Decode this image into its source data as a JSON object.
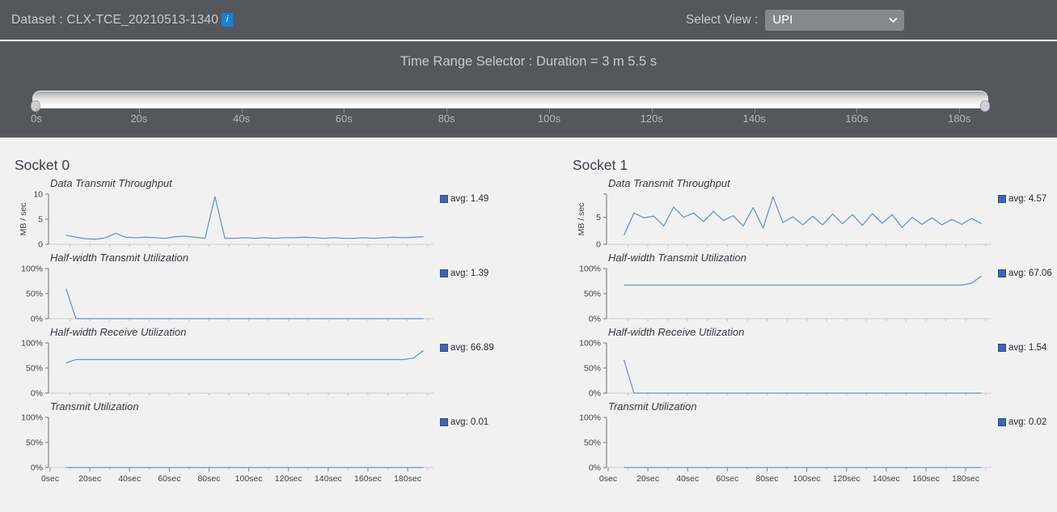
{
  "header": {
    "dataset_label": "Dataset : CLX-TCE_20210513-1340",
    "select_view_label": "Select View :",
    "view_options": [
      "UPI"
    ],
    "view_selected": "UPI"
  },
  "time_range": {
    "title": "Time Range Selector : Duration = 3 m 5.5 s",
    "tick_labels": [
      "0s",
      "20s",
      "40s",
      "60s",
      "80s",
      "100s",
      "120s",
      "140s",
      "160s",
      "180s"
    ]
  },
  "x_axis": {
    "tick_labels": [
      "0sec",
      "20sec",
      "40sec",
      "60sec",
      "80sec",
      "100sec",
      "120sec",
      "140sec",
      "160sec",
      "180sec"
    ],
    "tick_step_sec": 20
  },
  "colors": {
    "line": "#6d94c4",
    "legend_square": "#3b67ae",
    "info_icon_bg": "#1b7ed4",
    "header_bg": "#54585d",
    "content_bg": "#f1f1f2"
  },
  "sockets": [
    {
      "title": "Socket 0"
    },
    {
      "title": "Socket 1"
    }
  ],
  "chart_data": [
    {
      "type": "line",
      "socket": "Socket 0",
      "title": "Data Transmit Throughput",
      "ylabel": "MB / sec",
      "ylim": [
        0,
        10
      ],
      "xlim": [
        0,
        193
      ],
      "yticks": [
        {
          "v": 0,
          "label": "0"
        },
        {
          "v": 5,
          "label": "5"
        },
        {
          "v": 10,
          "label": "10"
        }
      ],
      "x_start": 8,
      "x_step": 5,
      "values": [
        1.8,
        1.4,
        1.1,
        1.0,
        1.3,
        2.2,
        1.4,
        1.3,
        1.4,
        1.3,
        1.2,
        1.5,
        1.6,
        1.4,
        1.2,
        9.5,
        1.2,
        1.2,
        1.3,
        1.2,
        1.3,
        1.2,
        1.3,
        1.3,
        1.4,
        1.3,
        1.2,
        1.3,
        1.2,
        1.2,
        1.3,
        1.2,
        1.3,
        1.4,
        1.3,
        1.4,
        1.5
      ],
      "legend": "avg: 1.49",
      "avg": 1.49
    },
    {
      "type": "line",
      "socket": "Socket 0",
      "title": "Half-width Transmit Utilization",
      "ylabel": "",
      "ylim": [
        0,
        100
      ],
      "xlim": [
        0,
        193
      ],
      "yticks": [
        {
          "v": 0,
          "label": "0%"
        },
        {
          "v": 50,
          "label": "50%"
        },
        {
          "v": 100,
          "label": "100%"
        }
      ],
      "x_start": 8,
      "x_step": 5,
      "values": [
        60,
        0,
        0,
        0,
        0,
        0,
        0,
        0,
        0,
        0,
        0,
        0,
        0,
        0,
        0,
        0,
        0,
        0,
        0,
        0,
        0,
        0,
        0,
        0,
        0,
        0,
        0,
        0,
        0,
        0,
        0,
        0,
        0,
        0,
        0,
        0,
        0
      ],
      "legend": "avg: 1.39",
      "avg": 1.39
    },
    {
      "type": "line",
      "socket": "Socket 0",
      "title": "Half-width Receive Utilization",
      "ylabel": "",
      "ylim": [
        0,
        100
      ],
      "xlim": [
        0,
        193
      ],
      "yticks": [
        {
          "v": 0,
          "label": "0%"
        },
        {
          "v": 50,
          "label": "50%"
        },
        {
          "v": 100,
          "label": "100%"
        }
      ],
      "x_start": 8,
      "x_step": 5,
      "values": [
        60,
        67,
        67,
        67,
        67,
        67,
        67,
        67,
        67,
        67,
        67,
        67,
        67,
        67,
        67,
        67,
        67,
        67,
        67,
        67,
        67,
        67,
        67,
        67,
        67,
        67,
        67,
        67,
        67,
        67,
        67,
        67,
        67,
        67,
        67,
        70,
        85
      ],
      "legend": "avg: 66.89",
      "avg": 66.89
    },
    {
      "type": "line",
      "socket": "Socket 0",
      "title": "Transmit Utilization",
      "ylabel": "",
      "ylim": [
        0,
        100
      ],
      "xlim": [
        0,
        193
      ],
      "yticks": [
        {
          "v": 0,
          "label": "0%"
        },
        {
          "v": 50,
          "label": "50%"
        },
        {
          "v": 100,
          "label": "100%"
        }
      ],
      "x_start": 8,
      "x_step": 5,
      "values": [
        0,
        0,
        0,
        0,
        0,
        0,
        0,
        0,
        0,
        0,
        0,
        0,
        0,
        0,
        0,
        0,
        0,
        0,
        0,
        0,
        0,
        0,
        0,
        0,
        0,
        0,
        0,
        0,
        0,
        0,
        0,
        0,
        0,
        0,
        0,
        0,
        0
      ],
      "legend": "avg: 0.01",
      "avg": 0.01
    },
    {
      "type": "line",
      "socket": "Socket 1",
      "title": "Data Transmit Throughput",
      "ylabel": "MB / sec",
      "ylim": [
        0,
        9.3
      ],
      "xlim": [
        0,
        193
      ],
      "yticks": [
        {
          "v": 0,
          "label": "0"
        },
        {
          "v": 5,
          "label": "5"
        },
        {
          "v": 9.3,
          "label": ""
        }
      ],
      "x_start": 8,
      "x_step": 5,
      "values": [
        1.7,
        5.8,
        4.9,
        5.2,
        3.4,
        6.9,
        5.0,
        5.8,
        4.2,
        6.1,
        4.4,
        5.3,
        3.4,
        6.8,
        3.0,
        8.8,
        4.0,
        5.1,
        3.6,
        5.2,
        3.6,
        5.6,
        3.8,
        5.5,
        3.5,
        5.7,
        3.9,
        5.5,
        3.1,
        5.0,
        3.7,
        4.9,
        3.6,
        4.6,
        3.7,
        4.8,
        3.8
      ],
      "legend": "avg: 4.57",
      "avg": 4.57
    },
    {
      "type": "line",
      "socket": "Socket 1",
      "title": "Half-width Transmit Utilization",
      "ylabel": "",
      "ylim": [
        0,
        100
      ],
      "xlim": [
        0,
        193
      ],
      "yticks": [
        {
          "v": 0,
          "label": "0%"
        },
        {
          "v": 50,
          "label": "50%"
        },
        {
          "v": 100,
          "label": "100%"
        }
      ],
      "x_start": 8,
      "x_step": 5,
      "values": [
        67,
        67,
        67,
        67,
        67,
        67,
        67,
        67,
        67,
        67,
        67,
        67,
        67,
        67,
        67,
        67,
        67,
        67,
        67,
        67,
        67,
        67,
        67,
        67,
        67,
        67,
        67,
        67,
        67,
        67,
        67,
        67,
        67,
        67,
        67,
        71,
        85
      ],
      "legend": "avg: 67.06",
      "avg": 67.06
    },
    {
      "type": "line",
      "socket": "Socket 1",
      "title": "Half-width Receive Utilization",
      "ylabel": "",
      "ylim": [
        0,
        100
      ],
      "xlim": [
        0,
        193
      ],
      "yticks": [
        {
          "v": 0,
          "label": "0%"
        },
        {
          "v": 50,
          "label": "50%"
        },
        {
          "v": 100,
          "label": "100%"
        }
      ],
      "x_start": 8,
      "x_step": 5,
      "values": [
        66,
        0,
        0,
        0,
        0,
        0,
        0,
        0,
        0,
        0,
        0,
        0,
        0,
        0,
        0,
        0,
        0,
        0,
        0,
        0,
        0,
        0,
        0,
        0,
        0,
        0,
        0,
        0,
        0,
        0,
        0,
        0,
        0,
        0,
        0,
        0,
        0
      ],
      "legend": "avg: 1.54",
      "avg": 1.54
    },
    {
      "type": "line",
      "socket": "Socket 1",
      "title": "Transmit Utilization",
      "ylabel": "",
      "ylim": [
        0,
        100
      ],
      "xlim": [
        0,
        193
      ],
      "yticks": [
        {
          "v": 0,
          "label": "0%"
        },
        {
          "v": 50,
          "label": "50%"
        },
        {
          "v": 100,
          "label": "100%"
        }
      ],
      "x_start": 8,
      "x_step": 5,
      "values": [
        0,
        0,
        0,
        0,
        0,
        0,
        0,
        0,
        0,
        0,
        0,
        0,
        0,
        0,
        0,
        0,
        0,
        0,
        0,
        0,
        0,
        0,
        0,
        0,
        0,
        0,
        0,
        0,
        0,
        0,
        0,
        0,
        0,
        0,
        0,
        0,
        0
      ],
      "legend": "avg: 0.02",
      "avg": 0.02
    }
  ]
}
